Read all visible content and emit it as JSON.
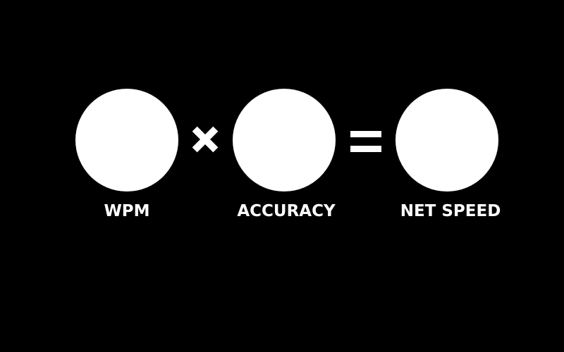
{
  "terms": [
    {
      "label": "WPM"
    },
    {
      "label": "ACCURACY"
    },
    {
      "label": "NET SPEED"
    }
  ],
  "operators": [
    "multiply-sign",
    "equals-sign"
  ],
  "colors": {
    "background": "#000000",
    "foreground": "#ffffff"
  }
}
